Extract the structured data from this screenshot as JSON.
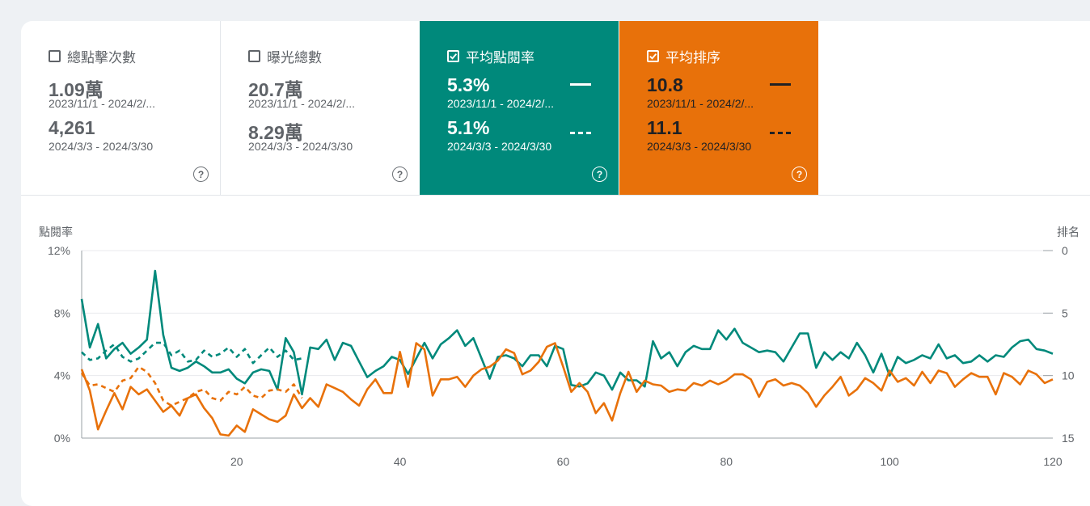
{
  "tiles": [
    {
      "label": "總點擊次數",
      "checked": false,
      "value1": "1.09萬",
      "range1": "2023/11/1 - 2024/2/...",
      "value2": "4,261",
      "range2": "2024/3/3 - 2024/3/30"
    },
    {
      "label": "曝光總數",
      "checked": false,
      "value1": "20.7萬",
      "range1": "2023/11/1 - 2024/2/...",
      "value2": "8.29萬",
      "range2": "2024/3/3 - 2024/3/30"
    },
    {
      "label": "平均點閱率",
      "checked": true,
      "value1": "5.3%",
      "range1": "2023/11/1 - 2024/2/...",
      "value2": "5.1%",
      "range2": "2024/3/3 - 2024/3/30"
    },
    {
      "label": "平均排序",
      "checked": true,
      "value1": "10.8",
      "range1": "2023/11/1 - 2024/2/...",
      "value2": "11.1",
      "range2": "2024/3/3 - 2024/3/30"
    }
  ],
  "help_glyph": "?",
  "colors": {
    "ctr": "#00897b",
    "position": "#e8710a",
    "grid": "#e8eaed",
    "axis": "#5f6368"
  },
  "chart_data": {
    "type": "line",
    "ylabel": "點閱率",
    "y2label": "排名",
    "ylim": [
      0,
      12
    ],
    "y_ticks": [
      "0%",
      "4%",
      "8%",
      "12%"
    ],
    "y2lim": [
      15,
      0
    ],
    "y2_ticks": [
      "0",
      "5",
      "10",
      "15"
    ],
    "xlim": [
      1,
      120
    ],
    "x_ticks": [
      "20",
      "40",
      "60",
      "80",
      "100",
      "120"
    ],
    "series": [
      {
        "key": "ctr_period1",
        "axis": "left",
        "style": "solid",
        "values": [
          8.9,
          5.8,
          7.3,
          5.1,
          5.7,
          6.1,
          5.4,
          5.8,
          6.3,
          10.7,
          6.6,
          4.5,
          4.3,
          4.5,
          4.9,
          4.6,
          4.2,
          4.2,
          4.4,
          3.8,
          3.5,
          4.2,
          4.4,
          4.3,
          3.1,
          6.4,
          5.5,
          2.8,
          5.8,
          5.7,
          6.3,
          5.0,
          6.1,
          5.9,
          4.9,
          3.9,
          4.3,
          4.6,
          5.2,
          5.0,
          4.1,
          5.1,
          6.1,
          5.1,
          6.0,
          6.4,
          6.9,
          5.9,
          6.4,
          5.1,
          3.8,
          5.2,
          5.3,
          5.1,
          4.6,
          5.3,
          5.3,
          4.6,
          5.9,
          5.7,
          3.4,
          3.3,
          3.5,
          4.2,
          4.0,
          3.1,
          4.2,
          3.7,
          3.7,
          3.3,
          6.2,
          5.1,
          5.5,
          4.6,
          5.5,
          5.9,
          5.7,
          5.7,
          6.9,
          6.3,
          7.0,
          6.1,
          5.8,
          5.5,
          5.6,
          5.5,
          4.9,
          5.8,
          6.7,
          6.7,
          4.5,
          5.5,
          5.0,
          5.5,
          5.1,
          6.1,
          5.3,
          4.2,
          5.4,
          4.0,
          5.2,
          4.8,
          5.0,
          5.3,
          5.1,
          6.0,
          5.1,
          5.3,
          4.8,
          4.9,
          5.3,
          4.9,
          5.3,
          5.2,
          5.8,
          6.2,
          6.3,
          5.7,
          5.6,
          5.4
        ]
      },
      {
        "key": "ctr_period2",
        "axis": "left",
        "style": "dashed",
        "values": [
          5.5,
          5.0,
          5.1,
          5.6,
          6.0,
          5.2,
          4.9,
          5.1,
          5.6,
          6.1,
          6.1,
          5.3,
          5.6,
          4.9,
          5.0,
          5.6,
          5.2,
          5.4,
          5.8,
          5.2,
          5.7,
          4.8,
          5.3,
          5.8,
          5.2,
          5.6,
          5.0,
          5.1
        ]
      },
      {
        "key": "position_period1",
        "axis": "right",
        "style": "solid",
        "values": [
          9.5,
          11.2,
          14.3,
          12.8,
          11.4,
          12.7,
          10.9,
          11.5,
          11.1,
          12.0,
          12.9,
          12.4,
          13.2,
          11.8,
          11.5,
          12.6,
          13.4,
          14.7,
          14.8,
          14.0,
          14.5,
          12.7,
          13.1,
          13.5,
          13.7,
          13.2,
          11.5,
          12.6,
          11.8,
          12.5,
          10.7,
          11.0,
          11.3,
          11.9,
          12.4,
          11.1,
          10.3,
          11.4,
          11.4,
          8.1,
          10.9,
          7.4,
          7.9,
          11.6,
          10.3,
          10.3,
          10.1,
          10.9,
          10.0,
          9.5,
          9.3,
          8.8,
          7.9,
          8.2,
          9.9,
          9.6,
          8.9,
          7.7,
          7.4,
          9.3,
          11.3,
          10.6,
          11.3,
          13.0,
          12.2,
          13.6,
          11.4,
          9.7,
          11.3,
          10.4,
          10.7,
          10.8,
          11.3,
          11.1,
          11.2,
          10.6,
          10.8,
          10.4,
          10.7,
          10.4,
          9.9,
          9.9,
          10.3,
          11.7,
          10.5,
          10.3,
          10.8,
          10.6,
          10.8,
          11.4,
          12.5,
          11.6,
          10.9,
          10.1,
          11.6,
          11.1,
          10.2,
          10.6,
          11.2,
          9.6,
          10.5,
          10.2,
          10.8,
          9.7,
          10.6,
          9.6,
          9.8,
          10.9,
          10.3,
          9.8,
          10.1,
          10.1,
          11.5,
          9.8,
          10.1,
          10.7,
          9.6,
          9.9,
          10.6,
          10.3
        ]
      },
      {
        "key": "position_period2",
        "axis": "right",
        "style": "dashed",
        "values": [
          9.8,
          10.8,
          10.7,
          11.0,
          11.3,
          10.4,
          10.2,
          9.3,
          9.7,
          10.6,
          12.0,
          12.4,
          12.1,
          11.8,
          11.3,
          11.1,
          11.8,
          12.0,
          11.3,
          11.5,
          10.9,
          11.6,
          11.8,
          11.2,
          11.1,
          11.3,
          10.7,
          11.8
        ]
      }
    ]
  }
}
